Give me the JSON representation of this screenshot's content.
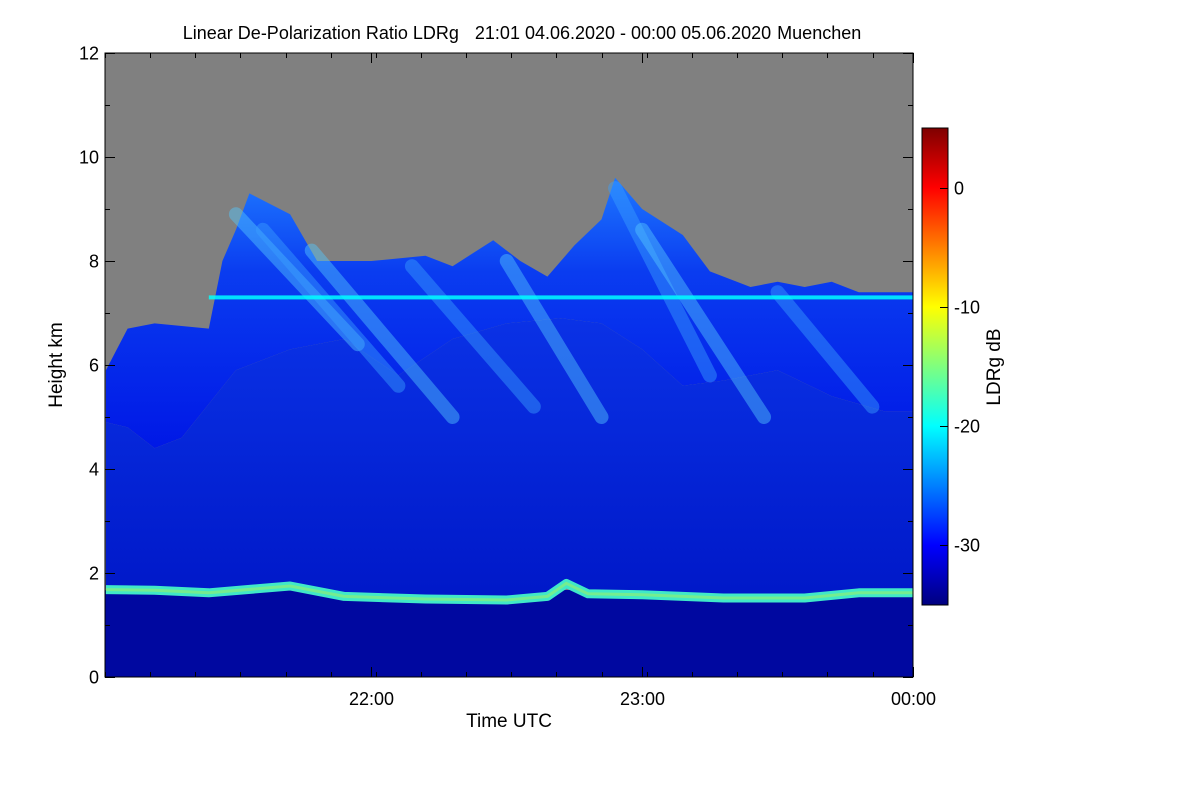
{
  "chart_data": {
    "type": "heatmap",
    "title": "Linear De-Polarization Ratio LDRg",
    "period": "21:01 04.06.2020 - 00:00 05.06.2020",
    "location": "Muenchen",
    "xlabel": "Time UTC",
    "ylabel": "Height km",
    "x_range_hours": [
      21.0167,
      24.0
    ],
    "x_ticks": [
      {
        "value": 22.0,
        "label": "22:00"
      },
      {
        "value": 23.0,
        "label": "23:00"
      },
      {
        "value": 24.0,
        "label": "00:00"
      }
    ],
    "x_minor_step_hours": 0.1667,
    "ylim": [
      0,
      12
    ],
    "y_ticks": [
      {
        "value": 0,
        "label": "0"
      },
      {
        "value": 2,
        "label": "2"
      },
      {
        "value": 4,
        "label": "4"
      },
      {
        "value": 6,
        "label": "6"
      },
      {
        "value": 8,
        "label": "8"
      },
      {
        "value": 10,
        "label": "10"
      },
      {
        "value": 12,
        "label": "12"
      }
    ],
    "y_minor_step": 1,
    "no_signal_color": "#808080",
    "colorbar": {
      "label": "LDRg dB",
      "range": [
        -35,
        5
      ],
      "ticks": [
        {
          "value": 0,
          "label": "0"
        },
        {
          "value": -10,
          "label": "-10"
        },
        {
          "value": -20,
          "label": "-20"
        },
        {
          "value": -30,
          "label": "-30"
        }
      ],
      "colormap": [
        "#00007f",
        "#0000ff",
        "#007fff",
        "#00ffff",
        "#7fff7f",
        "#ffff00",
        "#ff7f00",
        "#ff0000",
        "#7f0000"
      ]
    },
    "layers": [
      {
        "name": "boundary layer",
        "height_km": [
          0,
          1.6
        ],
        "ldr_db": -33
      },
      {
        "name": "aerosol layer top",
        "height_km": [
          1.5,
          1.85
        ],
        "ldr_db": -20
      },
      {
        "name": "cirrus and fall streaks",
        "height_km": [
          1.85,
          9.8
        ],
        "ldr_db": -28
      },
      {
        "name": "artifact line",
        "height_km": [
          7.3,
          7.3
        ],
        "ldr_db": -20
      }
    ],
    "cloud_top_km": [
      [
        21.02,
        5.9
      ],
      [
        21.1,
        6.7
      ],
      [
        21.2,
        6.8
      ],
      [
        21.4,
        6.7
      ],
      [
        21.45,
        8.0
      ],
      [
        21.5,
        8.6
      ],
      [
        21.55,
        9.3
      ],
      [
        21.7,
        8.9
      ],
      [
        21.8,
        8.0
      ],
      [
        22.0,
        8.0
      ],
      [
        22.2,
        8.1
      ],
      [
        22.3,
        7.9
      ],
      [
        22.45,
        8.4
      ],
      [
        22.55,
        8.0
      ],
      [
        22.65,
        7.7
      ],
      [
        22.75,
        8.3
      ],
      [
        22.85,
        8.8
      ],
      [
        22.9,
        9.6
      ],
      [
        23.0,
        9.0
      ],
      [
        23.15,
        8.5
      ],
      [
        23.25,
        7.8
      ],
      [
        23.4,
        7.5
      ],
      [
        23.5,
        7.6
      ],
      [
        23.6,
        7.5
      ],
      [
        23.7,
        7.6
      ],
      [
        23.8,
        7.4
      ],
      [
        23.9,
        7.4
      ],
      [
        24.0,
        7.4
      ]
    ],
    "cloud_base_km": [
      [
        21.02,
        4.9
      ],
      [
        21.1,
        4.8
      ],
      [
        21.2,
        4.4
      ],
      [
        21.3,
        4.6
      ],
      [
        21.5,
        5.9
      ],
      [
        21.7,
        6.3
      ],
      [
        21.9,
        6.5
      ],
      [
        22.1,
        5.8
      ],
      [
        22.3,
        6.5
      ],
      [
        22.5,
        6.8
      ],
      [
        22.7,
        6.9
      ],
      [
        22.85,
        6.8
      ],
      [
        23.0,
        6.3
      ],
      [
        23.15,
        5.6
      ],
      [
        23.3,
        5.7
      ],
      [
        23.5,
        5.9
      ],
      [
        23.7,
        5.4
      ],
      [
        23.9,
        5.1
      ],
      [
        24.0,
        5.1
      ]
    ],
    "aerosol_top_km": [
      [
        21.02,
        1.68
      ],
      [
        21.2,
        1.67
      ],
      [
        21.4,
        1.62
      ],
      [
        21.7,
        1.75
      ],
      [
        21.9,
        1.55
      ],
      [
        22.2,
        1.5
      ],
      [
        22.5,
        1.48
      ],
      [
        22.65,
        1.55
      ],
      [
        22.72,
        1.8
      ],
      [
        22.8,
        1.6
      ],
      [
        23.0,
        1.58
      ],
      [
        23.3,
        1.52
      ],
      [
        23.6,
        1.52
      ],
      [
        23.8,
        1.62
      ],
      [
        24.0,
        1.62
      ]
    ]
  }
}
